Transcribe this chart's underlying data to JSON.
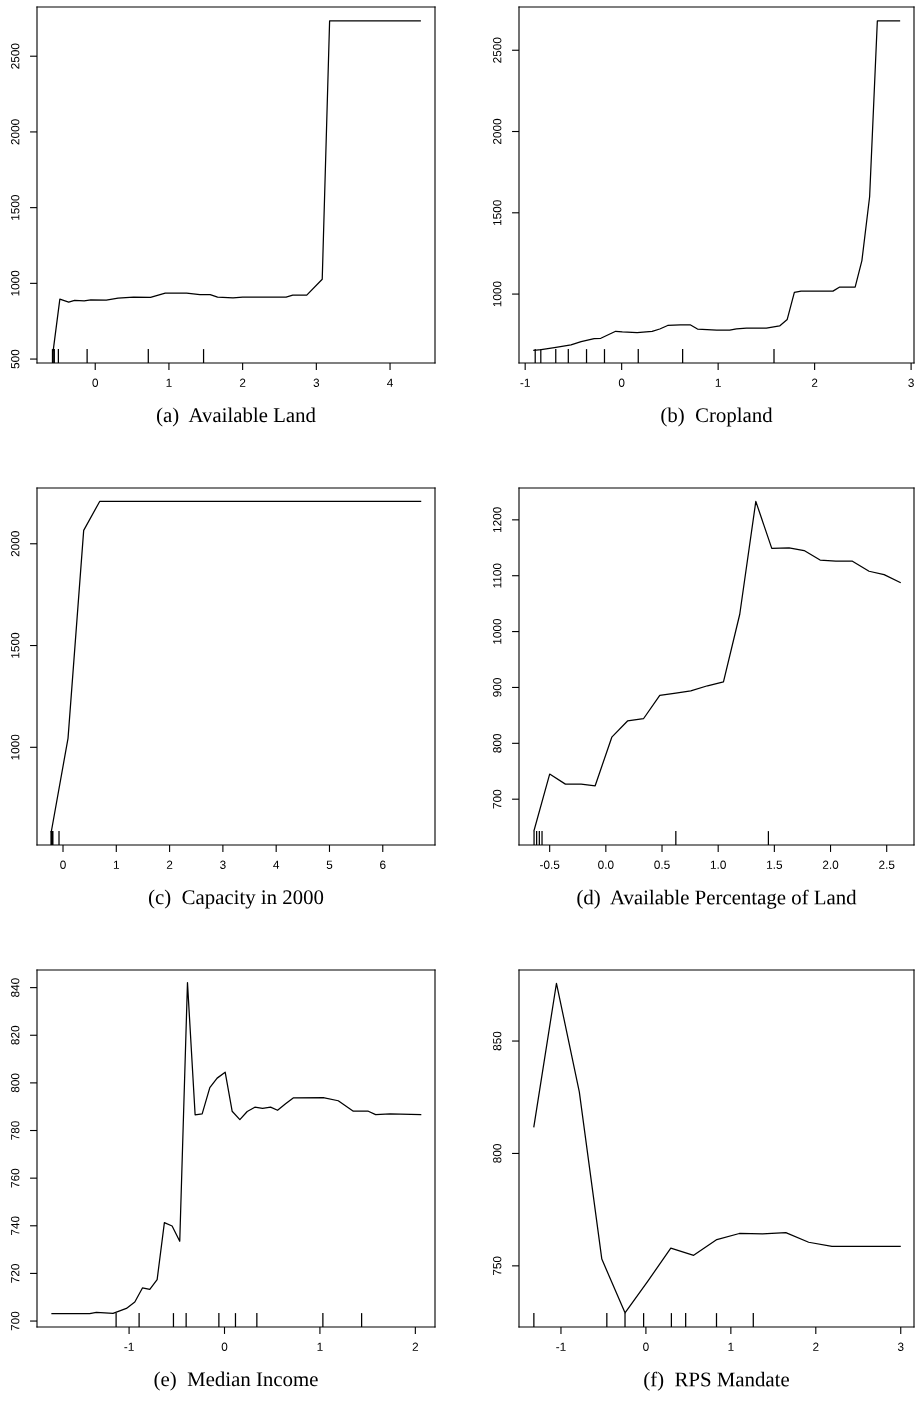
{
  "chart_data": [
    {
      "type": "line",
      "title": "(a)  Available Land",
      "xlim": [
        -0.79,
        4.61
      ],
      "ylim": [
        474,
        2825
      ],
      "xticks": [
        {
          "value": -0.58,
          "label": null
        },
        {
          "value": -0.57,
          "label": null
        },
        {
          "value": -0.555,
          "label": null
        },
        {
          "value": -0.5,
          "label": null
        },
        {
          "value": -0.11,
          "label": null
        },
        0,
        {
          "value": 0.72,
          "label": null
        },
        1,
        {
          "value": 1.47,
          "label": null
        },
        2,
        3,
        4
      ],
      "yticks": [
        500,
        1000,
        1500,
        2000,
        2500
      ],
      "series": [
        {
          "color": "#000000",
          "x": [
            -0.57,
            -0.48,
            -0.36,
            -0.28,
            -0.15,
            -0.06,
            0.15,
            0.31,
            0.52,
            0.75,
            0.95,
            1.24,
            1.42,
            1.56,
            1.66,
            1.87,
            2.0,
            2.59,
            2.68,
            2.87,
            3.08,
            3.18,
            4.41
          ],
          "values": [
            557,
            896,
            876,
            887,
            884,
            891,
            889,
            902,
            909,
            907,
            935,
            935,
            926,
            926,
            909,
            904,
            909,
            909,
            922,
            922,
            1027,
            2733,
            2733
          ]
        }
      ]
    },
    {
      "type": "line",
      "title": "(b)  Cropland",
      "xlim": [
        -1.064,
        3.03
      ],
      "ylim": [
        576,
        2766
      ],
      "xticks": [
        -1,
        {
          "value": -0.896,
          "label": null
        },
        {
          "value": -0.838,
          "label": null
        },
        {
          "value": -0.683,
          "label": null
        },
        {
          "value": -0.553,
          "label": null
        },
        {
          "value": -0.364,
          "label": null
        },
        {
          "value": -0.178,
          "label": null
        },
        0,
        {
          "value": 0.172,
          "label": null
        },
        {
          "value": 0.632,
          "label": null
        },
        1,
        {
          "value": 1.579,
          "label": null
        },
        2,
        3
      ],
      "yticks": [
        1000,
        1500,
        2000,
        2500
      ],
      "series": [
        {
          "color": "#000000",
          "x": [
            -0.91,
            -0.834,
            -0.697,
            -0.525,
            -0.42,
            -0.285,
            -0.216,
            -0.062,
            0.007,
            0.16,
            0.316,
            0.395,
            0.477,
            0.608,
            0.71,
            0.786,
            0.985,
            1.12,
            1.19,
            1.294,
            1.5,
            1.637,
            1.716,
            1.79,
            1.86,
            2.19,
            2.26,
            2.42,
            2.49,
            2.57,
            2.65,
            2.88
          ],
          "values": [
            654,
            658,
            671,
            687,
            707,
            726,
            728,
            771,
            767,
            763,
            771,
            785,
            807,
            811,
            811,
            785,
            778,
            778,
            786,
            790,
            790,
            804,
            844,
            1010,
            1018,
            1018,
            1043,
            1043,
            1206,
            1599,
            2680,
            2680
          ]
        }
      ]
    },
    {
      "type": "line",
      "title": "(c)  Capacity in 2000",
      "xlim": [
        -0.488,
        6.98
      ],
      "ylim": [
        520,
        2274
      ],
      "xticks": [
        {
          "value": -0.225,
          "label": null
        },
        {
          "value": -0.213,
          "label": null
        },
        {
          "value": -0.2,
          "label": null
        },
        {
          "value": -0.19,
          "label": null
        },
        {
          "value": -0.075,
          "label": null
        },
        0,
        1,
        2,
        3,
        4,
        5,
        6
      ],
      "yticks": [
        1000,
        1500,
        2000
      ],
      "series": [
        {
          "color": "#000000",
          "x": [
            -0.22,
            0.094,
            0.388,
            0.688,
            6.71
          ],
          "values": [
            585,
            1044,
            2066,
            2208,
            2208
          ]
        }
      ]
    },
    {
      "type": "line",
      "title": "(d)  Available Percentage of Land",
      "xlim": [
        -0.773,
        2.743
      ],
      "ylim": [
        618,
        1257
      ],
      "xticks": [
        {
          "value": -0.639,
          "label": null
        },
        {
          "value": -0.616,
          "label": null
        },
        {
          "value": -0.592,
          "label": null
        },
        {
          "value": -0.568,
          "label": null
        },
        {
          "value": -0.5,
          "label": "-0.5"
        },
        {
          "value": 0,
          "label": "0.0"
        },
        0.5,
        {
          "value": 0.623,
          "label": null
        },
        {
          "value": 1,
          "label": "1.0"
        },
        {
          "value": 1.447,
          "label": null
        },
        1.5,
        {
          "value": 2,
          "label": "2.0"
        },
        2.5
      ],
      "yticks": [
        700,
        800,
        900,
        1000,
        1100,
        1200
      ],
      "series": [
        {
          "color": "#000000",
          "x": [
            -0.639,
            -0.5,
            -0.36,
            -0.22,
            -0.095,
            0.053,
            0.193,
            0.335,
            0.48,
            0.623,
            0.756,
            0.905,
            1.047,
            1.192,
            1.335,
            1.477,
            1.631,
            1.765,
            1.907,
            2.047,
            2.195,
            2.343,
            2.477,
            2.62
          ],
          "values": [
            644,
            745,
            727,
            727,
            724,
            811,
            840,
            844,
            886,
            890,
            894,
            903,
            910,
            1031,
            1233,
            1149,
            1150,
            1145,
            1128,
            1126,
            1126,
            1108,
            1102,
            1088
          ]
        }
      ]
    },
    {
      "type": "line",
      "title": "(e)  Median Income",
      "xlim": [
        -1.965,
        2.206
      ],
      "ylim": [
        697.5,
        847.4
      ],
      "xticks": [
        {
          "value": -1.136,
          "label": null
        },
        -1,
        {
          "value": -0.895,
          "label": null
        },
        {
          "value": -0.535,
          "label": null
        },
        {
          "value": -0.402,
          "label": null
        },
        {
          "value": -0.059,
          "label": null
        },
        0,
        {
          "value": 0.115,
          "label": null
        },
        {
          "value": 0.339,
          "label": null
        },
        1,
        {
          "value": 1.031,
          "label": null
        },
        {
          "value": 1.437,
          "label": null
        },
        2
      ],
      "yticks": [
        700,
        720,
        740,
        760,
        780,
        800,
        820,
        840
      ],
      "series": [
        {
          "color": "#000000",
          "x": [
            -1.808,
            -1.413,
            -1.343,
            -1.168,
            -1.028,
            -0.94,
            -0.86,
            -0.783,
            -0.706,
            -0.63,
            -0.549,
            -0.469,
            -0.388,
            -0.308,
            -0.234,
            -0.154,
            -0.077,
            0.007,
            0.08,
            0.161,
            0.238,
            0.318,
            0.399,
            0.483,
            0.556,
            0.64,
            0.72,
            1.035,
            1.192,
            1.35,
            1.507,
            1.584,
            1.734,
            2.056
          ],
          "values": [
            703.1,
            703.1,
            703.6,
            703.2,
            705.3,
            708,
            713.9,
            713.3,
            717.4,
            741.3,
            739.9,
            733.5,
            842.1,
            786.6,
            787,
            798,
            802,
            804.5,
            788.1,
            784.6,
            788,
            789.8,
            789.3,
            789.8,
            788.5,
            791.2,
            793.7,
            793.8,
            792.5,
            788.1,
            788.1,
            786.7,
            787,
            786.7
          ]
        }
      ]
    },
    {
      "type": "line",
      "title": "(f)  RPS Mandate",
      "xlim": [
        -1.494,
        3.156
      ],
      "ylim": [
        722.8,
        881.6
      ],
      "xticks": [
        {
          "value": -1.319,
          "label": null
        },
        -1,
        {
          "value": -0.46,
          "label": null
        },
        {
          "value": -0.246,
          "label": null
        },
        {
          "value": -0.027,
          "label": null
        },
        0,
        {
          "value": 0.3,
          "label": null
        },
        {
          "value": 0.468,
          "label": null
        },
        {
          "value": 0.831,
          "label": null
        },
        1,
        {
          "value": 1.264,
          "label": null
        },
        2,
        3
      ],
      "yticks": [
        750,
        800,
        850
      ],
      "series": [
        {
          "color": "#000000",
          "x": [
            -1.319,
            -1.053,
            -0.784,
            -0.519,
            -0.246,
            0.023,
            0.293,
            0.562,
            0.835,
            1.1,
            1.373,
            1.647,
            1.916,
            2.19,
            2.993
          ],
          "values": [
            811.9,
            875.7,
            827.4,
            753,
            729.1,
            743.2,
            757.9,
            754.7,
            761.7,
            764.4,
            764.2,
            764.8,
            760.5,
            758.7,
            758.7
          ]
        }
      ]
    }
  ]
}
